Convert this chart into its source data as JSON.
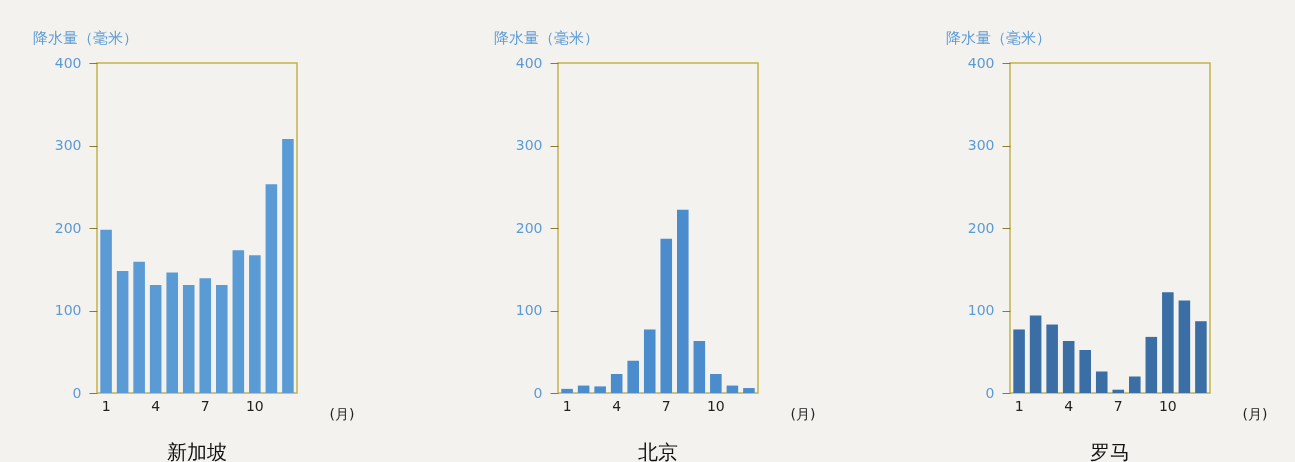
{
  "chart_data": [
    {
      "type": "bar",
      "title": "新加坡",
      "ylabel": "降水量（毫米）",
      "xlabel": "(月)",
      "categories": [
        "1",
        null,
        null,
        "4",
        null,
        null,
        "7",
        null,
        null,
        "10",
        null,
        null
      ],
      "values": [
        198,
        148,
        159,
        131,
        146,
        131,
        139,
        131,
        173,
        167,
        253,
        308
      ],
      "color": "#5b9bd5",
      "ylim": [
        0,
        400
      ],
      "yticks": [
        0,
        100,
        200,
        300,
        400
      ]
    },
    {
      "type": "bar",
      "title": "北京",
      "ylabel": "降水量（毫米）",
      "xlabel": "(月)",
      "categories": [
        "1",
        null,
        null,
        "4",
        null,
        null,
        "7",
        null,
        null,
        "10",
        null,
        null
      ],
      "values": [
        5,
        9,
        8,
        23,
        39,
        77,
        187,
        222,
        63,
        23,
        9,
        6
      ],
      "color": "#4a8ccc",
      "ylim": [
        0,
        400
      ],
      "yticks": [
        0,
        100,
        200,
        300,
        400
      ]
    },
    {
      "type": "bar",
      "title": "罗马",
      "ylabel": "降水量（毫米）",
      "xlabel": "(月)",
      "categories": [
        "1",
        null,
        null,
        "4",
        null,
        null,
        "7",
        null,
        null,
        "10",
        null,
        null
      ],
      "values": [
        77,
        94,
        83,
        63,
        52,
        26,
        4,
        20,
        68,
        122,
        112,
        87
      ],
      "color": "#3a6ea5",
      "ylim": [
        0,
        400
      ],
      "yticks": [
        0,
        100,
        200,
        300,
        400
      ]
    }
  ]
}
